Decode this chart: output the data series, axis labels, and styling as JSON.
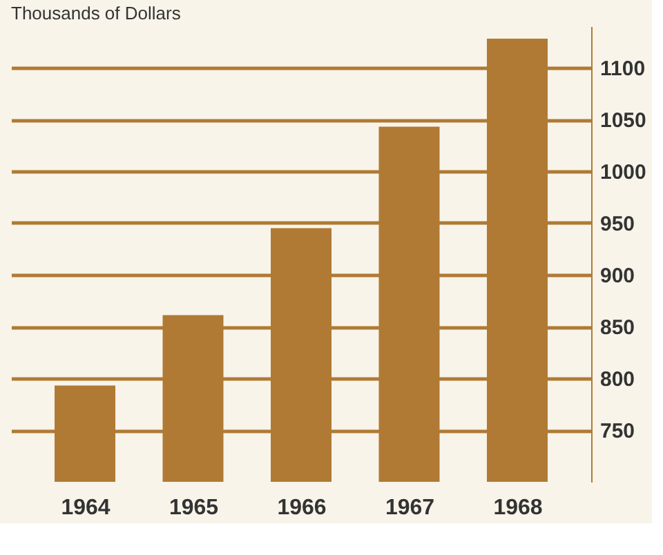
{
  "chart_data": {
    "type": "bar",
    "ylabel": "Thousands of Dollars",
    "categories": [
      "1964",
      "1965",
      "1966",
      "1967",
      "1968"
    ],
    "values": [
      793,
      861,
      945,
      1043,
      1128
    ],
    "color": "#b07a35",
    "ylim": [
      700,
      1140
    ],
    "yticks": [
      750,
      800,
      850,
      900,
      950,
      1000,
      1050,
      1100
    ],
    "grid": "y"
  }
}
